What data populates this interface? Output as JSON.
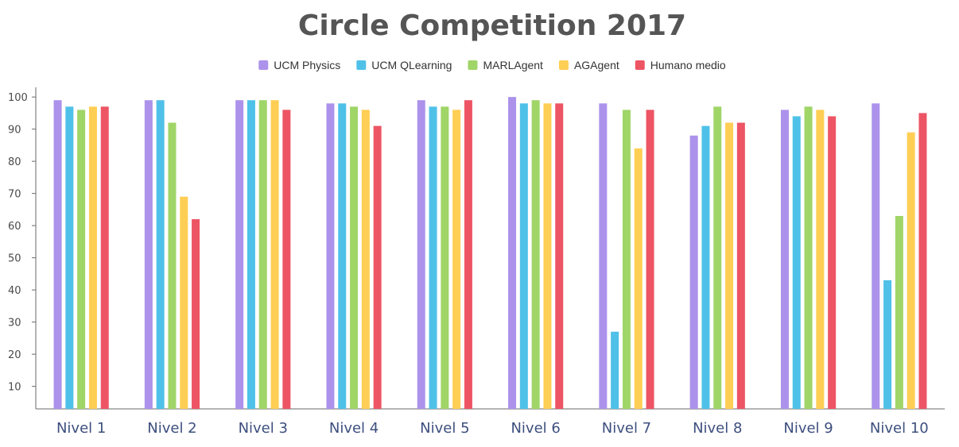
{
  "chart_data": {
    "type": "bar",
    "title": "Circle Competition 2017",
    "xlabel": "",
    "ylabel": "",
    "ylim": [
      3,
      103
    ],
    "yticks": [
      10,
      20,
      30,
      40,
      50,
      60,
      70,
      80,
      90,
      100
    ],
    "legend_position": "top-center",
    "categories": [
      "Nivel 1",
      "Nivel 2",
      "Nivel 3",
      "Nivel 4",
      "Nivel 5",
      "Nivel 6",
      "Nivel 7",
      "Nivel 8",
      "Nivel 9",
      "Nivel 10"
    ],
    "series": [
      {
        "name": "UCM Physics",
        "color": "#ac92eb",
        "values": [
          99,
          99,
          99,
          98,
          99,
          100,
          98,
          88,
          96,
          98
        ]
      },
      {
        "name": "UCM QLearning",
        "color": "#4fc1e8",
        "values": [
          97,
          99,
          99,
          98,
          97,
          98,
          27,
          91,
          94,
          43
        ]
      },
      {
        "name": "MARLAgent",
        "color": "#a0d568",
        "values": [
          96,
          92,
          99,
          97,
          97,
          99,
          96,
          97,
          97,
          63
        ]
      },
      {
        "name": "AGAgent",
        "color": "#ffce54",
        "values": [
          97,
          69,
          99,
          96,
          96,
          98,
          84,
          92,
          96,
          89
        ]
      },
      {
        "name": "Humano medio",
        "color": "#ed5564",
        "values": [
          97,
          62,
          96,
          91,
          99,
          98,
          96,
          92,
          94,
          95
        ]
      }
    ]
  }
}
